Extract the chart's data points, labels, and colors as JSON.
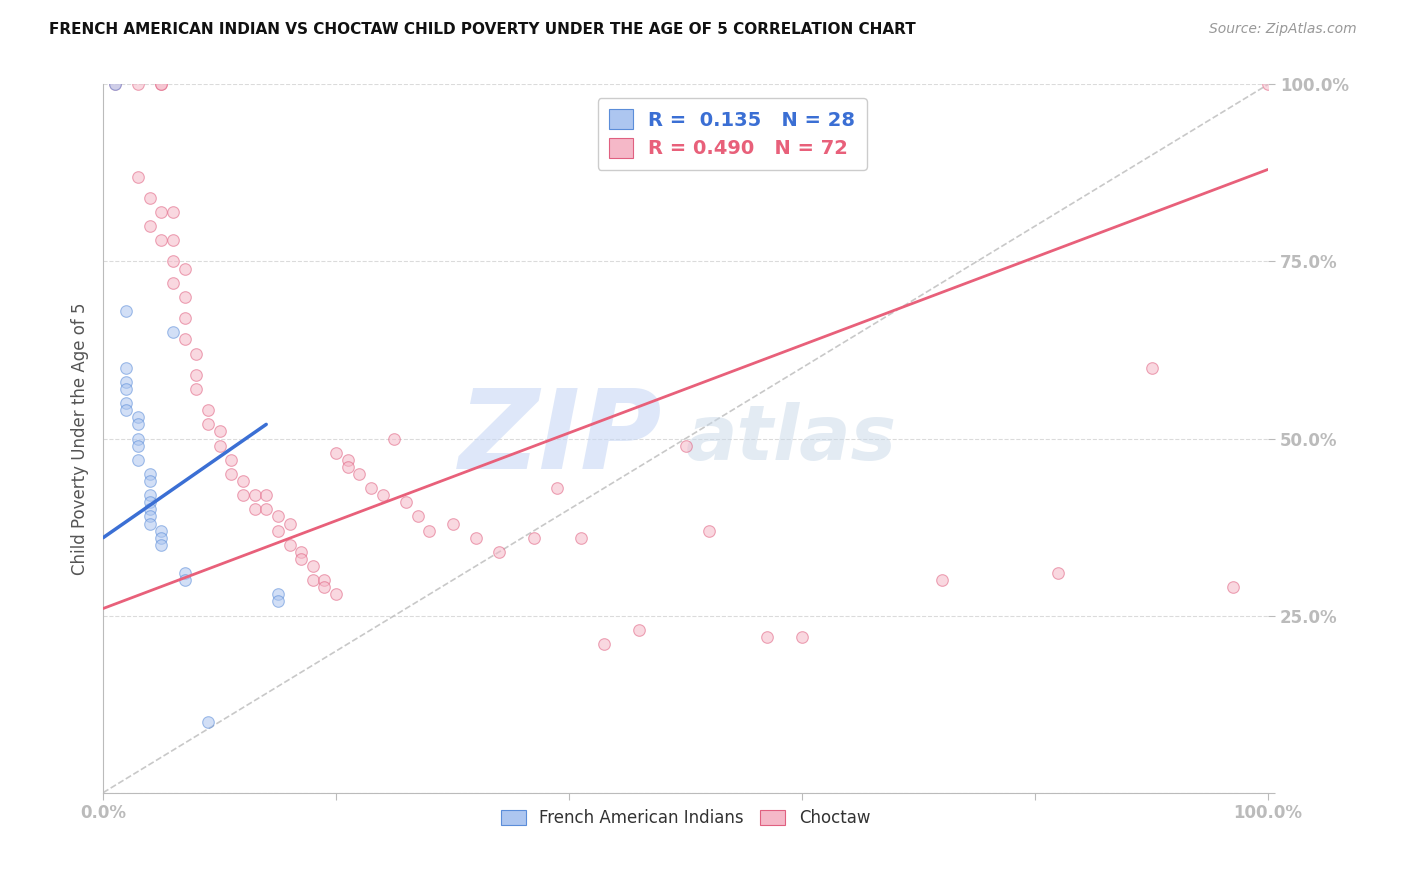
{
  "title": "FRENCH AMERICAN INDIAN VS CHOCTAW CHILD POVERTY UNDER THE AGE OF 5 CORRELATION CHART",
  "source": "Source: ZipAtlas.com",
  "ylabel": "Child Poverty Under the Age of 5",
  "watermark_zip": "ZIP",
  "watermark_atlas": "atlas",
  "blue_label": "French American Indians",
  "pink_label": "Choctaw",
  "blue_R": 0.135,
  "blue_N": 28,
  "pink_R": 0.49,
  "pink_N": 72,
  "blue_color": "#adc6f0",
  "pink_color": "#f5b8c8",
  "blue_edge_color": "#5b8dd9",
  "pink_edge_color": "#e06080",
  "blue_line_color": "#3b6fd4",
  "pink_line_color": "#e8607a",
  "ref_line_color": "#bbbbbb",
  "blue_points": [
    [
      0.01,
      1.0
    ],
    [
      0.02,
      0.68
    ],
    [
      0.02,
      0.6
    ],
    [
      0.02,
      0.58
    ],
    [
      0.02,
      0.57
    ],
    [
      0.02,
      0.55
    ],
    [
      0.02,
      0.54
    ],
    [
      0.03,
      0.53
    ],
    [
      0.03,
      0.52
    ],
    [
      0.03,
      0.5
    ],
    [
      0.03,
      0.49
    ],
    [
      0.03,
      0.47
    ],
    [
      0.04,
      0.45
    ],
    [
      0.04,
      0.44
    ],
    [
      0.04,
      0.42
    ],
    [
      0.04,
      0.41
    ],
    [
      0.04,
      0.4
    ],
    [
      0.04,
      0.39
    ],
    [
      0.04,
      0.38
    ],
    [
      0.05,
      0.37
    ],
    [
      0.05,
      0.36
    ],
    [
      0.05,
      0.35
    ],
    [
      0.06,
      0.65
    ],
    [
      0.07,
      0.31
    ],
    [
      0.07,
      0.3
    ],
    [
      0.15,
      0.28
    ],
    [
      0.15,
      0.27
    ],
    [
      0.09,
      0.1
    ]
  ],
  "pink_points": [
    [
      0.01,
      1.0
    ],
    [
      0.03,
      1.0
    ],
    [
      0.05,
      1.0
    ],
    [
      0.05,
      1.0
    ],
    [
      1.0,
      1.0
    ],
    [
      0.9,
      0.6
    ],
    [
      0.03,
      0.87
    ],
    [
      0.04,
      0.84
    ],
    [
      0.04,
      0.8
    ],
    [
      0.05,
      0.82
    ],
    [
      0.05,
      0.78
    ],
    [
      0.06,
      0.82
    ],
    [
      0.06,
      0.78
    ],
    [
      0.06,
      0.75
    ],
    [
      0.06,
      0.72
    ],
    [
      0.07,
      0.74
    ],
    [
      0.07,
      0.7
    ],
    [
      0.07,
      0.67
    ],
    [
      0.07,
      0.64
    ],
    [
      0.08,
      0.62
    ],
    [
      0.08,
      0.59
    ],
    [
      0.08,
      0.57
    ],
    [
      0.09,
      0.54
    ],
    [
      0.09,
      0.52
    ],
    [
      0.1,
      0.51
    ],
    [
      0.1,
      0.49
    ],
    [
      0.11,
      0.47
    ],
    [
      0.11,
      0.45
    ],
    [
      0.12,
      0.44
    ],
    [
      0.12,
      0.42
    ],
    [
      0.13,
      0.42
    ],
    [
      0.13,
      0.4
    ],
    [
      0.14,
      0.42
    ],
    [
      0.14,
      0.4
    ],
    [
      0.15,
      0.39
    ],
    [
      0.15,
      0.37
    ],
    [
      0.16,
      0.38
    ],
    [
      0.16,
      0.35
    ],
    [
      0.17,
      0.34
    ],
    [
      0.17,
      0.33
    ],
    [
      0.18,
      0.32
    ],
    [
      0.18,
      0.3
    ],
    [
      0.19,
      0.3
    ],
    [
      0.19,
      0.29
    ],
    [
      0.2,
      0.28
    ],
    [
      0.2,
      0.48
    ],
    [
      0.21,
      0.47
    ],
    [
      0.21,
      0.46
    ],
    [
      0.22,
      0.45
    ],
    [
      0.23,
      0.43
    ],
    [
      0.24,
      0.42
    ],
    [
      0.25,
      0.5
    ],
    [
      0.26,
      0.41
    ],
    [
      0.27,
      0.39
    ],
    [
      0.28,
      0.37
    ],
    [
      0.3,
      0.38
    ],
    [
      0.32,
      0.36
    ],
    [
      0.34,
      0.34
    ],
    [
      0.37,
      0.36
    ],
    [
      0.39,
      0.43
    ],
    [
      0.41,
      0.36
    ],
    [
      0.43,
      0.21
    ],
    [
      0.46,
      0.23
    ],
    [
      0.5,
      0.49
    ],
    [
      0.52,
      0.37
    ],
    [
      0.57,
      0.22
    ],
    [
      0.6,
      0.22
    ],
    [
      0.72,
      0.3
    ],
    [
      0.82,
      0.31
    ],
    [
      0.97,
      0.29
    ]
  ],
  "blue_line_x": [
    0.0,
    0.14
  ],
  "blue_line_y": [
    0.36,
    0.52
  ],
  "pink_line_x": [
    0.0,
    1.0
  ],
  "pink_line_y": [
    0.26,
    0.88
  ],
  "ref_line_x": [
    0.0,
    1.0
  ],
  "ref_line_y": [
    0.0,
    1.0
  ],
  "xlim": [
    0.0,
    1.0
  ],
  "ylim": [
    0.0,
    1.0
  ],
  "yticks": [
    0.0,
    0.25,
    0.5,
    0.75,
    1.0
  ],
  "xticks": [
    0.0,
    0.25,
    0.5,
    0.75,
    1.0
  ],
  "background_color": "#ffffff",
  "grid_color": "#cccccc",
  "title_color": "#111111",
  "ylabel_color": "#555555",
  "tick_color": "#4472c4",
  "dot_size": 70,
  "dot_alpha": 0.55,
  "dot_linewidth": 0.8
}
